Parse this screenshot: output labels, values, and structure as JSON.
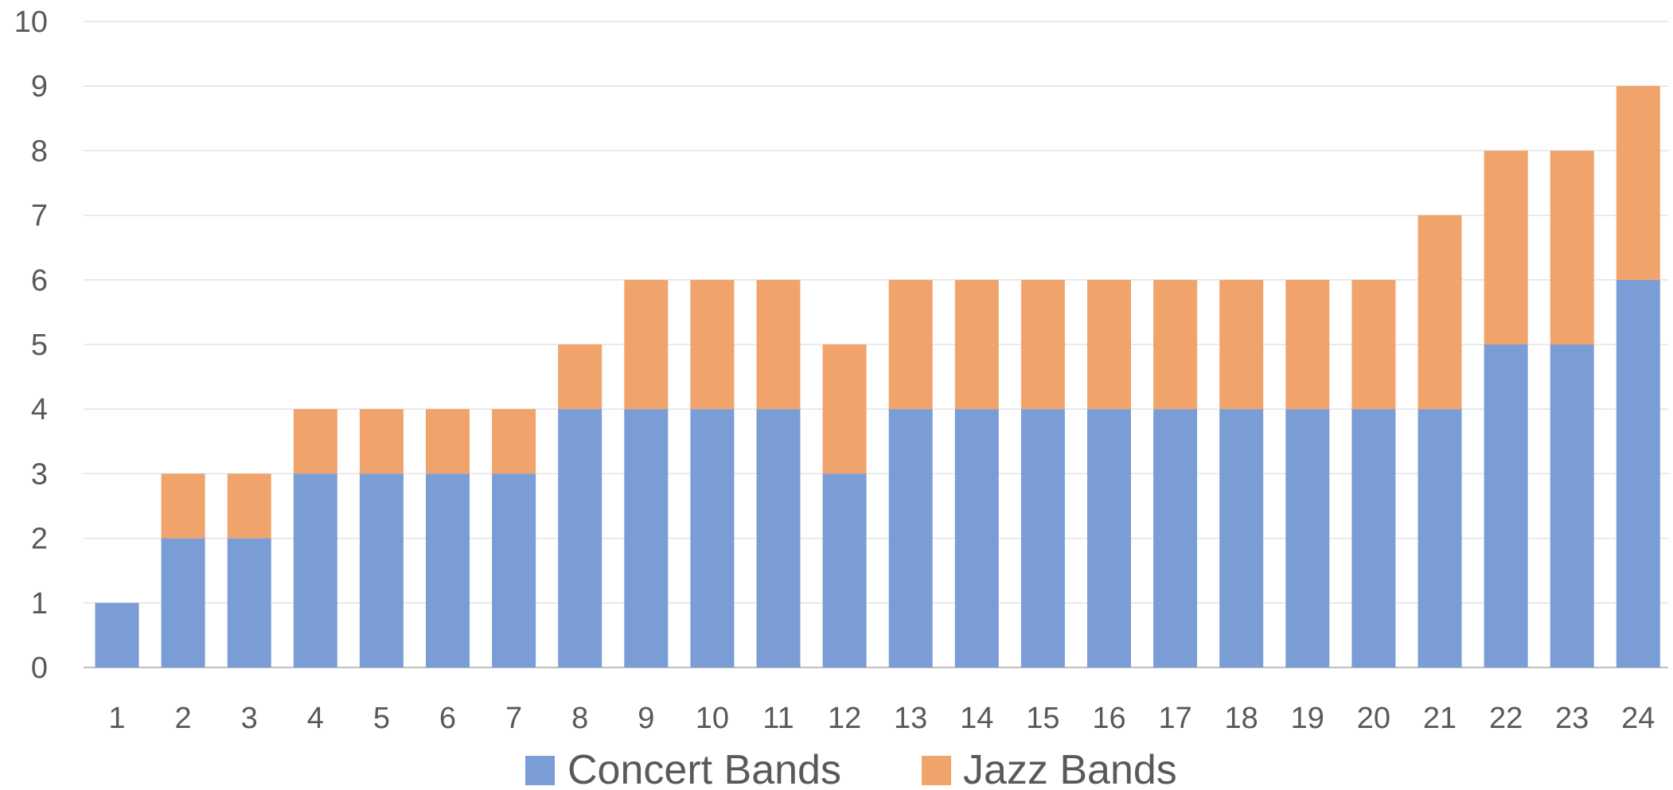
{
  "chart_data": {
    "type": "bar",
    "stacked": true,
    "title": "",
    "xlabel": "",
    "ylabel": "",
    "categories": [
      "1",
      "2",
      "3",
      "4",
      "5",
      "6",
      "7",
      "8",
      "9",
      "10",
      "11",
      "12",
      "13",
      "14",
      "15",
      "16",
      "17",
      "18",
      "19",
      "20",
      "21",
      "22",
      "23",
      "24"
    ],
    "series": [
      {
        "name": "Concert Bands",
        "color": "#7a9dd6",
        "values": [
          1,
          2,
          2,
          3,
          3,
          3,
          3,
          4,
          4,
          4,
          4,
          3,
          4,
          4,
          4,
          4,
          4,
          4,
          4,
          4,
          4,
          5,
          5,
          6
        ]
      },
      {
        "name": "Jazz Bands",
        "color": "#f0a46b",
        "values": [
          0,
          1,
          1,
          1,
          1,
          1,
          1,
          1,
          2,
          2,
          2,
          2,
          2,
          2,
          2,
          2,
          2,
          2,
          2,
          2,
          3,
          3,
          3,
          3
        ]
      }
    ],
    "ylim": [
      0,
      10
    ],
    "yticks": [
      "0",
      "1",
      "2",
      "3",
      "4",
      "5",
      "6",
      "7",
      "8",
      "9",
      "10"
    ],
    "grid": true,
    "legend_position": "bottom"
  }
}
